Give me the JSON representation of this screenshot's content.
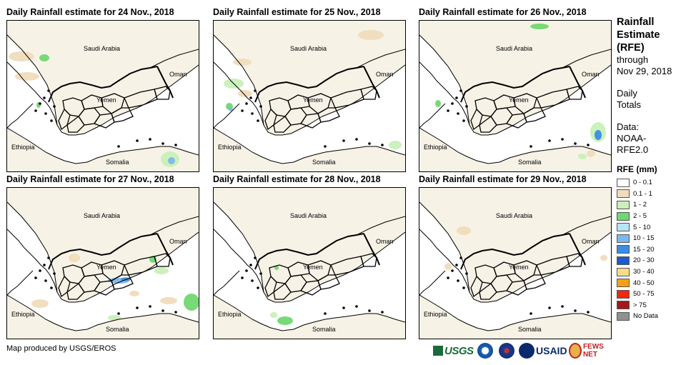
{
  "panels": [
    {
      "title": "Daily Rainfall estimate for 24 Nov., 2018"
    },
    {
      "title": "Daily Rainfall estimate for 25 Nov., 2018"
    },
    {
      "title": "Daily Rainfall estimate for 26 Nov., 2018"
    },
    {
      "title": "Daily Rainfall estimate for 27 Nov., 2018"
    },
    {
      "title": "Daily Rainfall estimate for 28 Nov., 2018"
    },
    {
      "title": "Daily Rainfall estimate for 29 Nov., 2018"
    }
  ],
  "map_labels": {
    "saudi": "Saudi Arabia",
    "oman": "Oman",
    "yemen": "Yemen",
    "ethiopia": "Ethiopia",
    "somalia": "Somalia"
  },
  "sidebar": {
    "title_lines": [
      "Rainfall",
      "Estimate",
      "(RFE)"
    ],
    "through": "through",
    "date": "Nov 29, 2018",
    "daily": "Daily",
    "totals": "Totals",
    "data_label": "Data:",
    "data_source_1": "NOAA-",
    "data_source_2": "RFE2.0"
  },
  "legend": {
    "title": "RFE (mm)",
    "items": [
      {
        "label": "0 - 0.1",
        "color": "#ffffff"
      },
      {
        "label": "0.1 - 1",
        "color": "#f0dcbc"
      },
      {
        "label": "1 - 2",
        "color": "#c8f0b8"
      },
      {
        "label": "2 - 5",
        "color": "#70d870"
      },
      {
        "label": "5 - 10",
        "color": "#b8e4f4"
      },
      {
        "label": "10 - 15",
        "color": "#7cb8ec"
      },
      {
        "label": "15 - 20",
        "color": "#3c8ce4"
      },
      {
        "label": "20 - 30",
        "color": "#1c5ccc"
      },
      {
        "label": "30 - 40",
        "color": "#f4dc8c"
      },
      {
        "label": "40 - 50",
        "color": "#f4a018"
      },
      {
        "label": "50 - 75",
        "color": "#f02810"
      },
      {
        "label": "> 75",
        "color": "#a01818"
      },
      {
        "label": "No Data",
        "color": "#909090"
      }
    ]
  },
  "footer": {
    "credit": "Map produced by USGS/EROS",
    "logos": {
      "usgs": "USGS",
      "usaid": "USAID",
      "fews": "FEWS NET"
    }
  }
}
